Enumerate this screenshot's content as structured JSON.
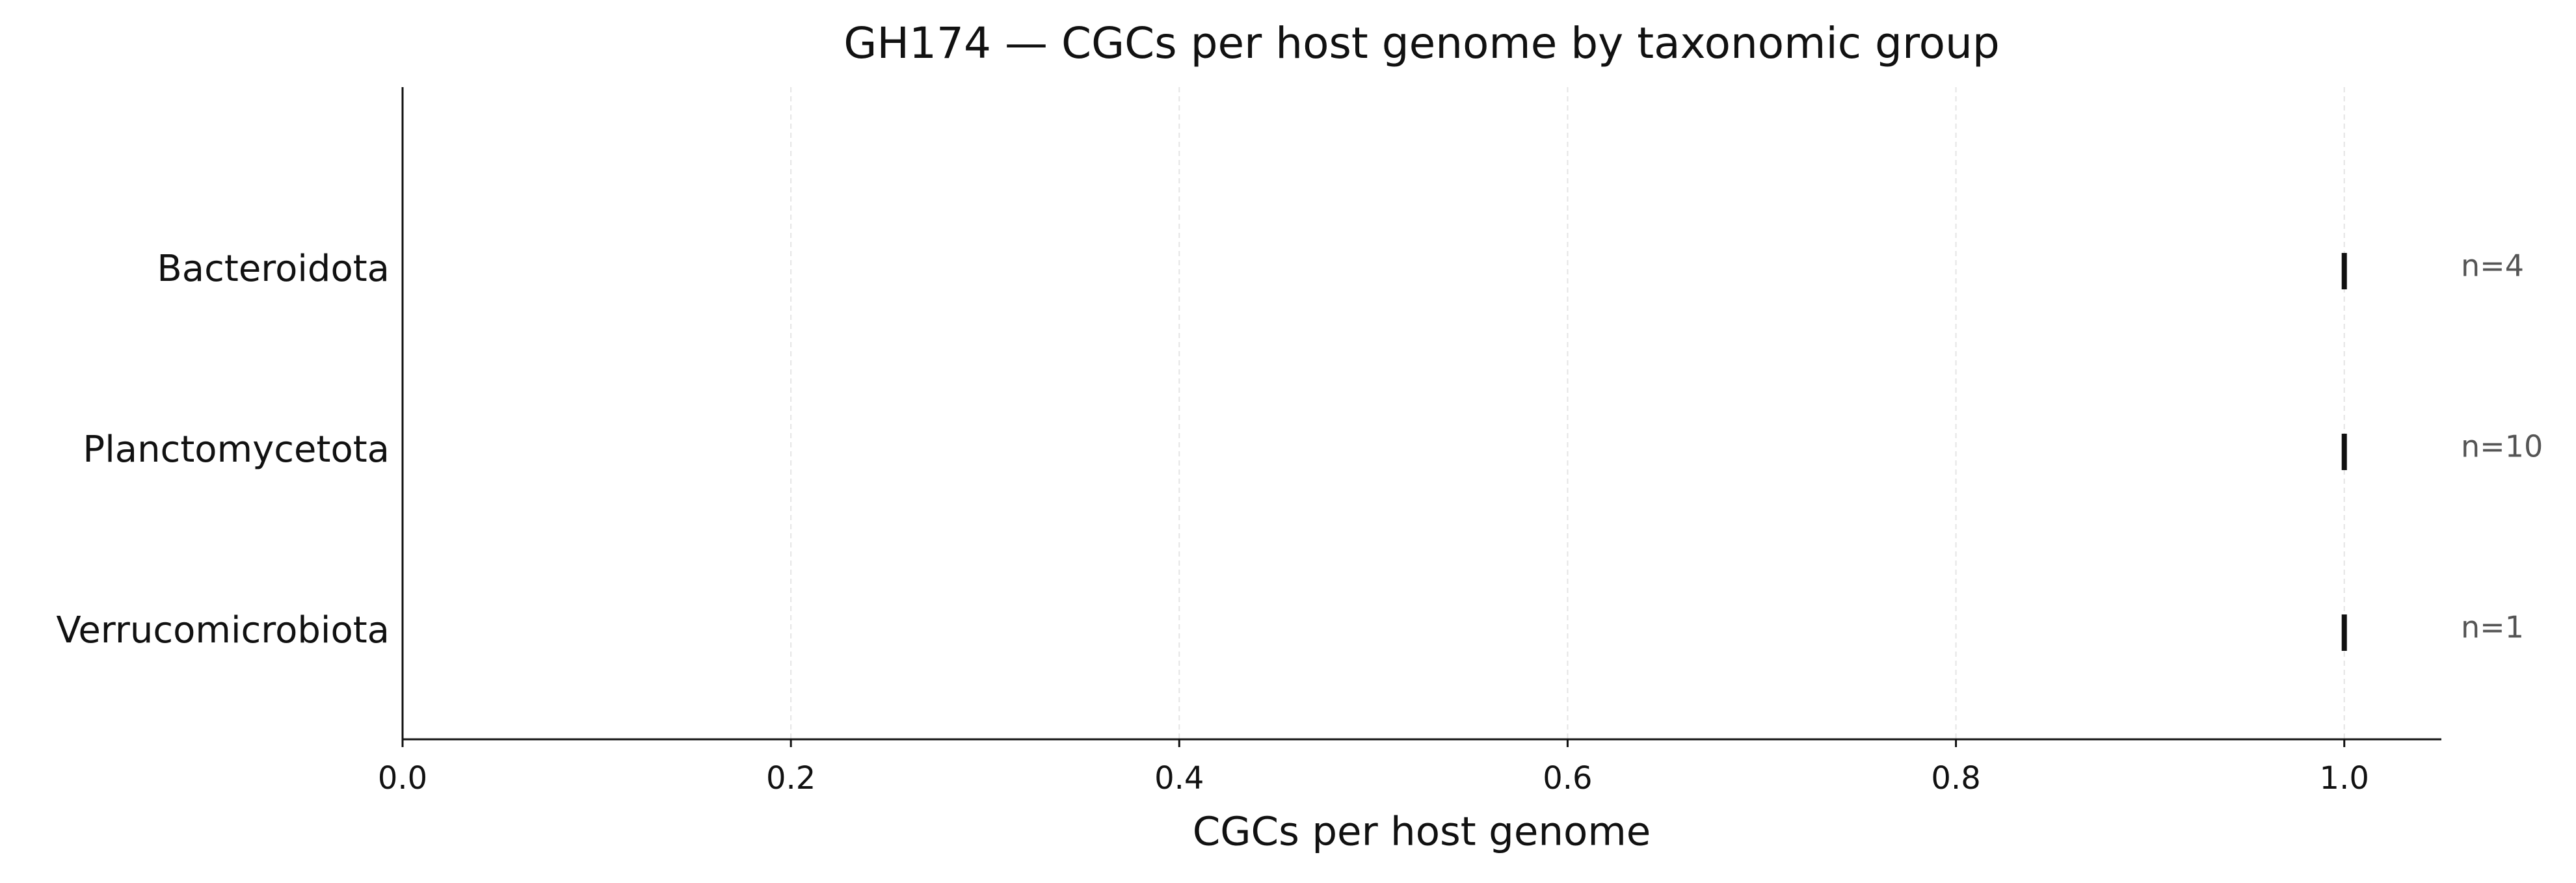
{
  "chart_data": {
    "type": "strip",
    "title": "GH174 — CGCs per host genome by taxonomic group",
    "x_label": "CGCs per host genome",
    "categories": [
      "Bacteroidota",
      "Planctomycetota",
      "Verrucomicrobiota"
    ],
    "values": [
      1.0,
      1.0,
      1.0
    ],
    "annotations": [
      "n=4",
      "n=10",
      "n=1"
    ],
    "color": "#111111",
    "xlim": [
      0,
      1.05
    ],
    "xticks": [
      {
        "value": 0,
        "label": "0.0"
      },
      {
        "value": 0.2,
        "label": "0.2"
      },
      {
        "value": 0.4,
        "label": "0.4"
      },
      {
        "value": 0.6,
        "label": "0.6"
      },
      {
        "value": 0.8,
        "label": "0.8"
      },
      {
        "value": 1,
        "label": "1.0"
      }
    ],
    "grid": true
  }
}
